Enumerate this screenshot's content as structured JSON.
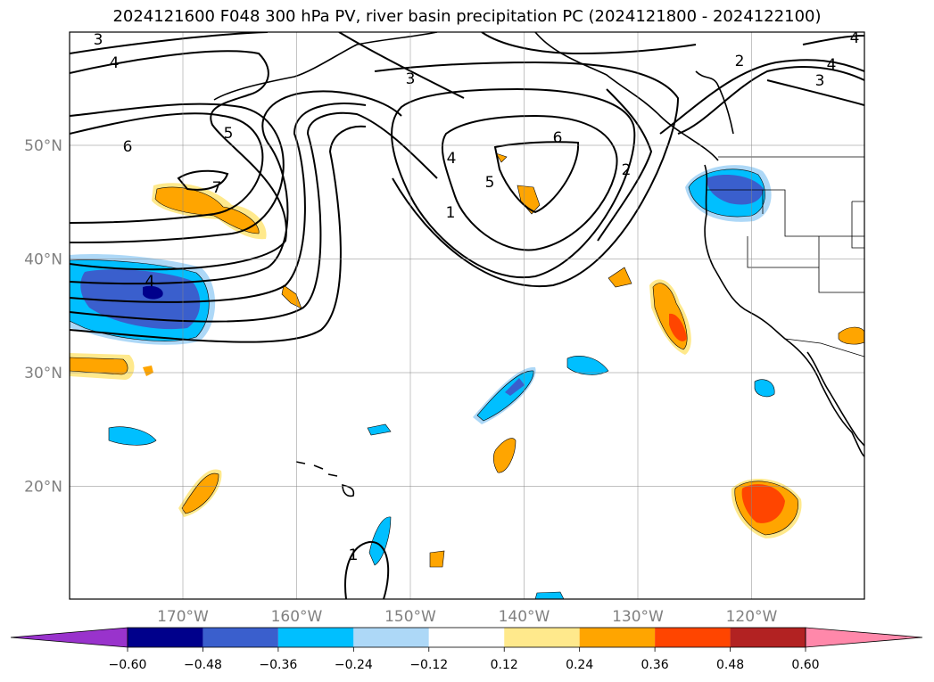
{
  "title": "2024121600 F048 300 hPa PV, river basin precipitation PC (2024121800 - 2024122100)",
  "map": {
    "lat_labels": [
      {
        "value": 50,
        "text": "50°N"
      },
      {
        "value": 40,
        "text": "40°N"
      },
      {
        "value": 30,
        "text": "30°N"
      },
      {
        "value": 20,
        "text": "20°N"
      }
    ],
    "lon_labels": [
      {
        "value": -170,
        "text": "170°W"
      },
      {
        "value": -160,
        "text": "160°W"
      },
      {
        "value": -150,
        "text": "150°W"
      },
      {
        "value": -140,
        "text": "140°W"
      },
      {
        "value": -130,
        "text": "130°W"
      },
      {
        "value": -120,
        "text": "120°W"
      }
    ],
    "pv_contour_labels": [
      "3",
      "4",
      "6",
      "5",
      "7",
      "4",
      "3",
      "6",
      "4",
      "5",
      "1",
      "2",
      "2",
      "4",
      "3",
      "4",
      "1"
    ]
  },
  "colorbar": {
    "colors": [
      "#9933cc",
      "#00008b",
      "#3a5fcd",
      "#00bfff",
      "#add8f7",
      "#ffffff",
      "#ffe98c",
      "#ffa500",
      "#ff4500",
      "#b22222",
      "#ff88aa"
    ],
    "tick_labels": [
      "−0.60",
      "−0.48",
      "−0.36",
      "−0.24",
      "−0.12",
      "0.12",
      "0.24",
      "0.36",
      "0.48",
      "0.60"
    ]
  }
}
